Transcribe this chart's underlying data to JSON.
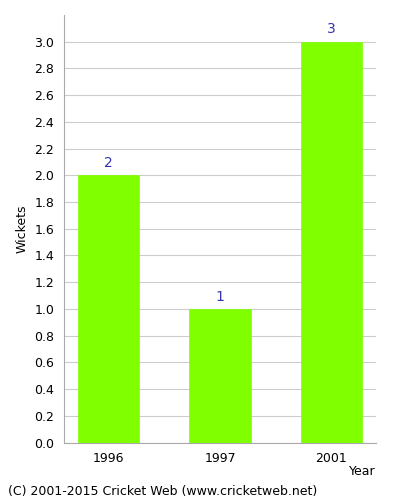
{
  "categories": [
    "1996",
    "1997",
    "2001"
  ],
  "values": [
    2,
    1,
    3
  ],
  "bar_color": "#7fff00",
  "bar_edge_color": "#7fff00",
  "annotation_color": "#3333aa",
  "annotation_fontsize": 10,
  "ylabel": "Wickets",
  "xlabel": "Year",
  "ylim": [
    0.0,
    3.2
  ],
  "yticks": [
    0.0,
    0.2,
    0.4,
    0.6,
    0.8,
    1.0,
    1.2,
    1.4,
    1.6,
    1.8,
    2.0,
    2.2,
    2.4,
    2.6,
    2.8,
    3.0
  ],
  "grid_color": "#cccccc",
  "background_color": "#ffffff",
  "footer_text": "(C) 2001-2015 Cricket Web (www.cricketweb.net)",
  "footer_fontsize": 9,
  "bar_width": 0.55,
  "axis_label_fontsize": 9,
  "tick_fontsize": 9
}
